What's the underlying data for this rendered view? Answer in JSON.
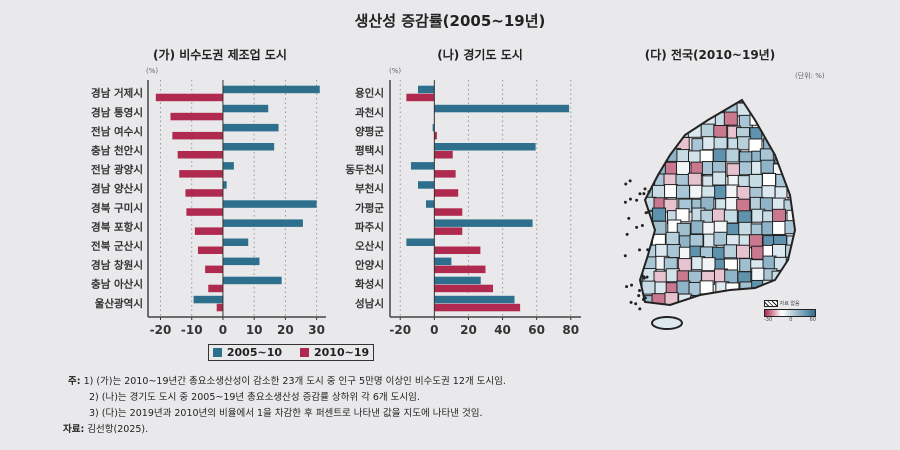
{
  "title": "생산성 증감률(2005~19년)",
  "colors": {
    "series_2005_10": "#2e6f8e",
    "series_2010_19": "#b02a4f",
    "background": "#e9e9eb"
  },
  "chart_data": [
    {
      "type": "bar",
      "orientation": "horizontal",
      "title": "(가) 비수도권 제조업 도시",
      "ylabel": "(%)",
      "categories": [
        "경남 거제시",
        "경남 통영시",
        "전남 여수시",
        "충남 천안시",
        "전남 광양시",
        "경남 양산시",
        "경북 구미시",
        "경북 포항시",
        "전북 군산시",
        "경남 창원시",
        "충남 아산시",
        "울산광역시"
      ],
      "series": [
        {
          "name": "2005~10",
          "values": [
            31,
            14.5,
            17.8,
            16.4,
            3.5,
            1.2,
            30,
            25.6,
            8.1,
            11.7,
            18.8,
            -9.4
          ]
        },
        {
          "name": "2010~19",
          "values": [
            -21.5,
            -16.8,
            -16.2,
            -14.5,
            -14,
            -12,
            -11.7,
            -9,
            -8,
            -5.7,
            -4.7,
            -2
          ]
        }
      ],
      "xlim": [
        -24,
        33
      ],
      "ticks": [
        "-20",
        "-10",
        "0",
        "10",
        "20",
        "30"
      ],
      "grid": true
    },
    {
      "type": "bar",
      "orientation": "horizontal",
      "title": "(나) 경기도 도시",
      "ylabel": "(%)",
      "categories": [
        "용인시",
        "과천시",
        "양평군",
        "평택시",
        "동두천시",
        "부천시",
        "가평군",
        "파주시",
        "오산시",
        "안양시",
        "화성시",
        "성남시"
      ],
      "series": [
        {
          "name": "2005~10",
          "values": [
            -9.6,
            79,
            -1,
            59.4,
            -13.7,
            -9.6,
            -4.9,
            57.6,
            -16.4,
            10,
            27.2,
            47
          ]
        },
        {
          "name": "2010~19",
          "values": [
            -16.4,
            0,
            1.5,
            10.8,
            12.5,
            14,
            16.4,
            16.4,
            27,
            30,
            34.4,
            50.3
          ]
        }
      ],
      "xlim": [
        -26,
        86
      ],
      "ticks": [
        "-20",
        "0",
        "20",
        "40",
        "60",
        "80"
      ],
      "grid": true
    }
  ],
  "map": {
    "title": "(다) 전국(2010~19년)",
    "unit": "(단위: %)",
    "no_data_label": "자료 없음",
    "scale_ticks": [
      "-30",
      "0",
      "60"
    ]
  },
  "legend": {
    "items": [
      "2005~10",
      "2010~19"
    ],
    "placement": "bottom"
  },
  "notes": {
    "label": "주:",
    "lines": [
      "1) (가)는 2010~19년간 총요소생산성이 감소한 23개 도시 중 인구 5만명 이상인 비수도권 12개 도시임.",
      "2) (나)는 경기도 도시 중 2005~19년 총요소생산성 증감률 상하위 각 6개 도시임.",
      "3) (다)는 2019년과 2010년의 비율에서 1을 차감한 후 퍼센트로 나타낸 값을 지도에 나타낸 것임."
    ],
    "source_label": "자료:",
    "source": "김선항(2025)."
  }
}
